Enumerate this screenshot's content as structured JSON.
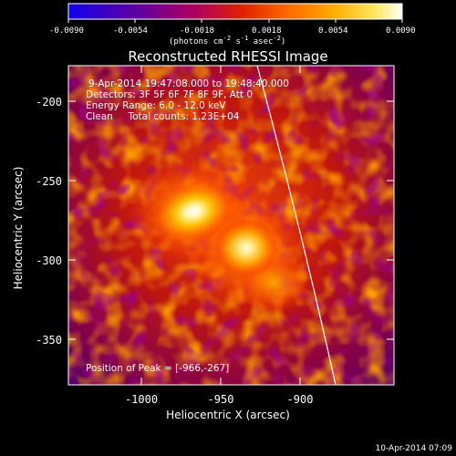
{
  "colorbar": {
    "ticks": [
      "-0.0090",
      "-0.0054",
      "-0.0018",
      "0.0018",
      "0.0054",
      "0.0090"
    ],
    "units_main": "(photons cm",
    "units_sup1": "-2",
    "units_mid": " s",
    "units_sup2": "-1",
    "units_end": " asec",
    "units_sup3": "-2",
    "units_close": ")",
    "colors": [
      "#1000f0",
      "#4000c0",
      "#700090",
      "#b00060",
      "#e02000",
      "#ff6a00",
      "#ffb000",
      "#ffe860",
      "#ffffff"
    ]
  },
  "plot": {
    "title": "Reconstructed RHESSI Image",
    "xlabel": "Heliocentric X (arcsec)",
    "ylabel": "Heliocentric Y (arcsec)",
    "xticks": [
      "-1000",
      "-950",
      "-900"
    ],
    "yticks": [
      "-200",
      "-250",
      "-300",
      "-350"
    ],
    "info_lines": [
      "9-Apr-2014 19:47:08.000 to 19:48:40.000",
      "Detectors: 3F 5F 6F 7F 8F 9F, Att 0",
      "Energy Range: 6.0 - 12.0 keV",
      "Clean     Total counts: 1.23E+04"
    ],
    "peak_text": "Position of Peak = [-966,-267]",
    "limb_color": "#ffffff"
  },
  "footer": {
    "timestamp": "10-Apr-2014 07:09"
  }
}
